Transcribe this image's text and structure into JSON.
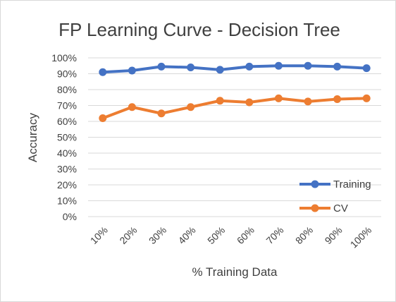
{
  "chart_data": {
    "type": "line",
    "title": "FP Learning Curve - Decision Tree",
    "xlabel": "% Training Data",
    "ylabel": "Accuracy",
    "categories": [
      "10%",
      "20%",
      "30%",
      "40%",
      "50%",
      "60%",
      "70%",
      "80%",
      "90%",
      "100%"
    ],
    "y_ticks": [
      "0%",
      "10%",
      "20%",
      "30%",
      "40%",
      "50%",
      "60%",
      "70%",
      "80%",
      "90%",
      "100%"
    ],
    "ylim": [
      0,
      1
    ],
    "grid": true,
    "legend_position": "right",
    "series": [
      {
        "name": "Training",
        "color": "#4472c4",
        "values": [
          0.91,
          0.92,
          0.945,
          0.94,
          0.925,
          0.945,
          0.95,
          0.95,
          0.945,
          0.935
        ]
      },
      {
        "name": "CV",
        "color": "#ed7d31",
        "values": [
          0.62,
          0.69,
          0.65,
          0.69,
          0.73,
          0.72,
          0.745,
          0.725,
          0.74,
          0.745
        ]
      }
    ]
  }
}
